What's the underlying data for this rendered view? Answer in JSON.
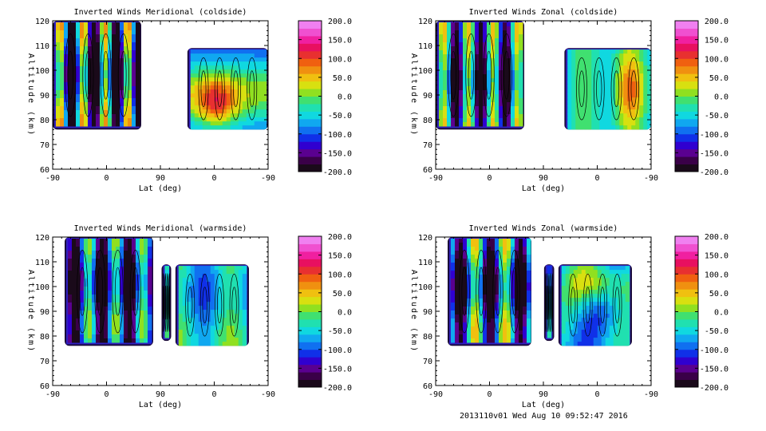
{
  "footer": "2013110v01 Wed Aug 10 09:52:47 2016",
  "colorbar": {
    "ticks": [
      "200.0",
      "150.0",
      "100.0",
      "50.0",
      "0.0",
      "-50.0",
      "-100.0",
      "-150.0",
      "-200.0"
    ],
    "colors": [
      "#1a0a1a",
      "#3a0048",
      "#5a0090",
      "#3000d0",
      "#1030e8",
      "#1070f0",
      "#10a8f0",
      "#10d8e0",
      "#20e0b0",
      "#40e070",
      "#90e020",
      "#d8e010",
      "#f0c010",
      "#f09010",
      "#f06010",
      "#e83030",
      "#e81060",
      "#f020a0",
      "#f050d0",
      "#f080f0"
    ]
  },
  "chart_data": [
    {
      "type": "heatmap",
      "title": "Inverted Winds Meridional (coldside)",
      "xlabel": "Lat (deg)",
      "ylabel": "Altitude (km)",
      "x_ticks": [
        "-90",
        "0",
        "90",
        "0",
        "-90"
      ],
      "y_ticks": [
        "120",
        "110",
        "100",
        "90",
        "80",
        "70",
        "60"
      ],
      "ylim": [
        60,
        120
      ],
      "zlim": [
        -200,
        200
      ],
      "regions": [
        {
          "lat_from": -90,
          "lat_to": 58,
          "alt_from": 76,
          "alt_to": 120
        },
        {
          "lat_from": 135,
          "lat_to": 270,
          "alt_from": 76,
          "alt_to": 109
        }
      ]
    },
    {
      "type": "heatmap",
      "title": "Inverted Winds Zonal (coldside)",
      "xlabel": "Lat (deg)",
      "ylabel": "Altitude (km)",
      "x_ticks": [
        "-90",
        "0",
        "90",
        "0",
        "-90"
      ],
      "y_ticks": [
        "120",
        "110",
        "100",
        "90",
        "80",
        "70",
        "60"
      ],
      "ylim": [
        60,
        120
      ],
      "zlim": [
        -200,
        200
      ],
      "regions": [
        {
          "lat_from": -90,
          "lat_to": 58,
          "alt_from": 76,
          "alt_to": 120
        },
        {
          "lat_from": 125,
          "lat_to": 270,
          "alt_from": 76,
          "alt_to": 109
        }
      ]
    },
    {
      "type": "heatmap",
      "title": "Inverted Winds Meridional (warmside)",
      "xlabel": "Lat (deg)",
      "ylabel": "Altitude (km)",
      "x_ticks": [
        "-90",
        "0",
        "90",
        "0",
        "-90"
      ],
      "y_ticks": [
        "120",
        "110",
        "100",
        "90",
        "80",
        "70",
        "60"
      ],
      "ylim": [
        60,
        120
      ],
      "zlim": [
        -200,
        200
      ],
      "regions": [
        {
          "lat_from": -70,
          "lat_to": 78,
          "alt_from": 76,
          "alt_to": 120
        },
        {
          "lat_from": 92,
          "lat_to": 108,
          "alt_from": 78,
          "alt_to": 109
        },
        {
          "lat_from": 115,
          "lat_to": 238,
          "alt_from": 76,
          "alt_to": 109
        }
      ]
    },
    {
      "type": "heatmap",
      "title": "Inverted Winds Zonal (warmside)",
      "xlabel": "Lat (deg)",
      "ylabel": "Altitude (km)",
      "x_ticks": [
        "-90",
        "0",
        "90",
        "0",
        "-90"
      ],
      "y_ticks": [
        "120",
        "110",
        "100",
        "90",
        "80",
        "70",
        "60"
      ],
      "ylim": [
        60,
        120
      ],
      "zlim": [
        -200,
        200
      ],
      "regions": [
        {
          "lat_from": -70,
          "lat_to": 70,
          "alt_from": 76,
          "alt_to": 120
        },
        {
          "lat_from": 91,
          "lat_to": 108,
          "alt_from": 78,
          "alt_to": 109
        },
        {
          "lat_from": 115,
          "lat_to": 238,
          "alt_from": 76,
          "alt_to": 109
        }
      ]
    }
  ]
}
